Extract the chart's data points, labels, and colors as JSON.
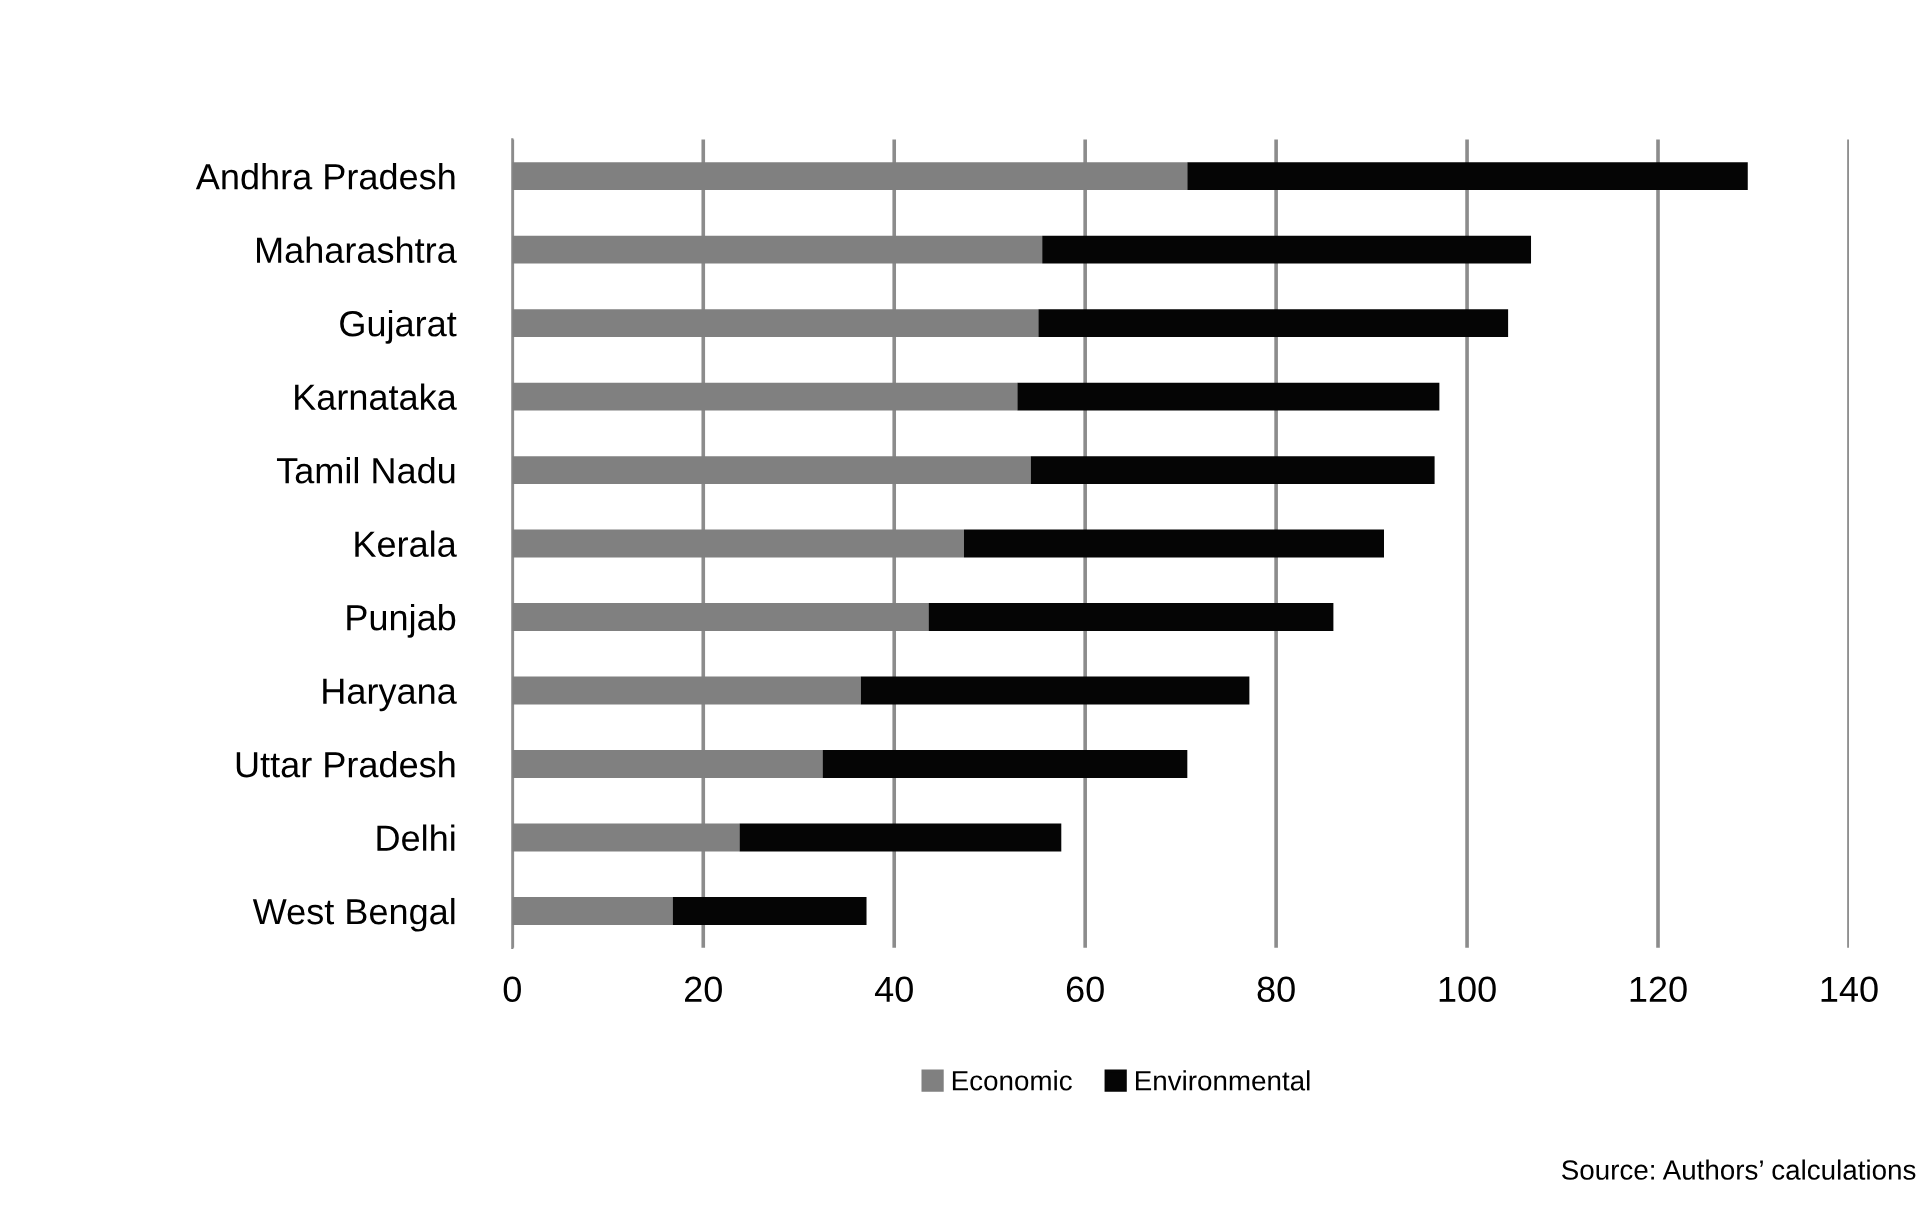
{
  "chart_data": {
    "type": "bar",
    "orientation": "horizontal",
    "stacked": true,
    "categories": [
      "Andhra Pradesh",
      "Maharashtra",
      "Gujarat",
      "Karnataka",
      "Tamil Nadu",
      "Kerala",
      "Punjab",
      "Haryana",
      "Uttar Pradesh",
      "Delhi",
      "West Bengal"
    ],
    "series": [
      {
        "name": "Economic",
        "color": "#808080",
        "values": [
          70.7,
          55.5,
          55.1,
          52.9,
          54.3,
          47.3,
          43.6,
          36.5,
          32.5,
          23.8,
          16.8
        ]
      },
      {
        "name": "Environmental",
        "color": "#050505",
        "values": [
          58.7,
          51.2,
          49.2,
          44.2,
          42.3,
          44.0,
          42.4,
          40.7,
          38.2,
          33.7,
          20.3
        ]
      }
    ],
    "xlim": [
      0,
      140
    ],
    "xticks": [
      0,
      20,
      40,
      60,
      80,
      100,
      120,
      140
    ],
    "grid": "x",
    "legend": "bottom",
    "annotations": [
      "Source: Authors’ calculations"
    ]
  }
}
